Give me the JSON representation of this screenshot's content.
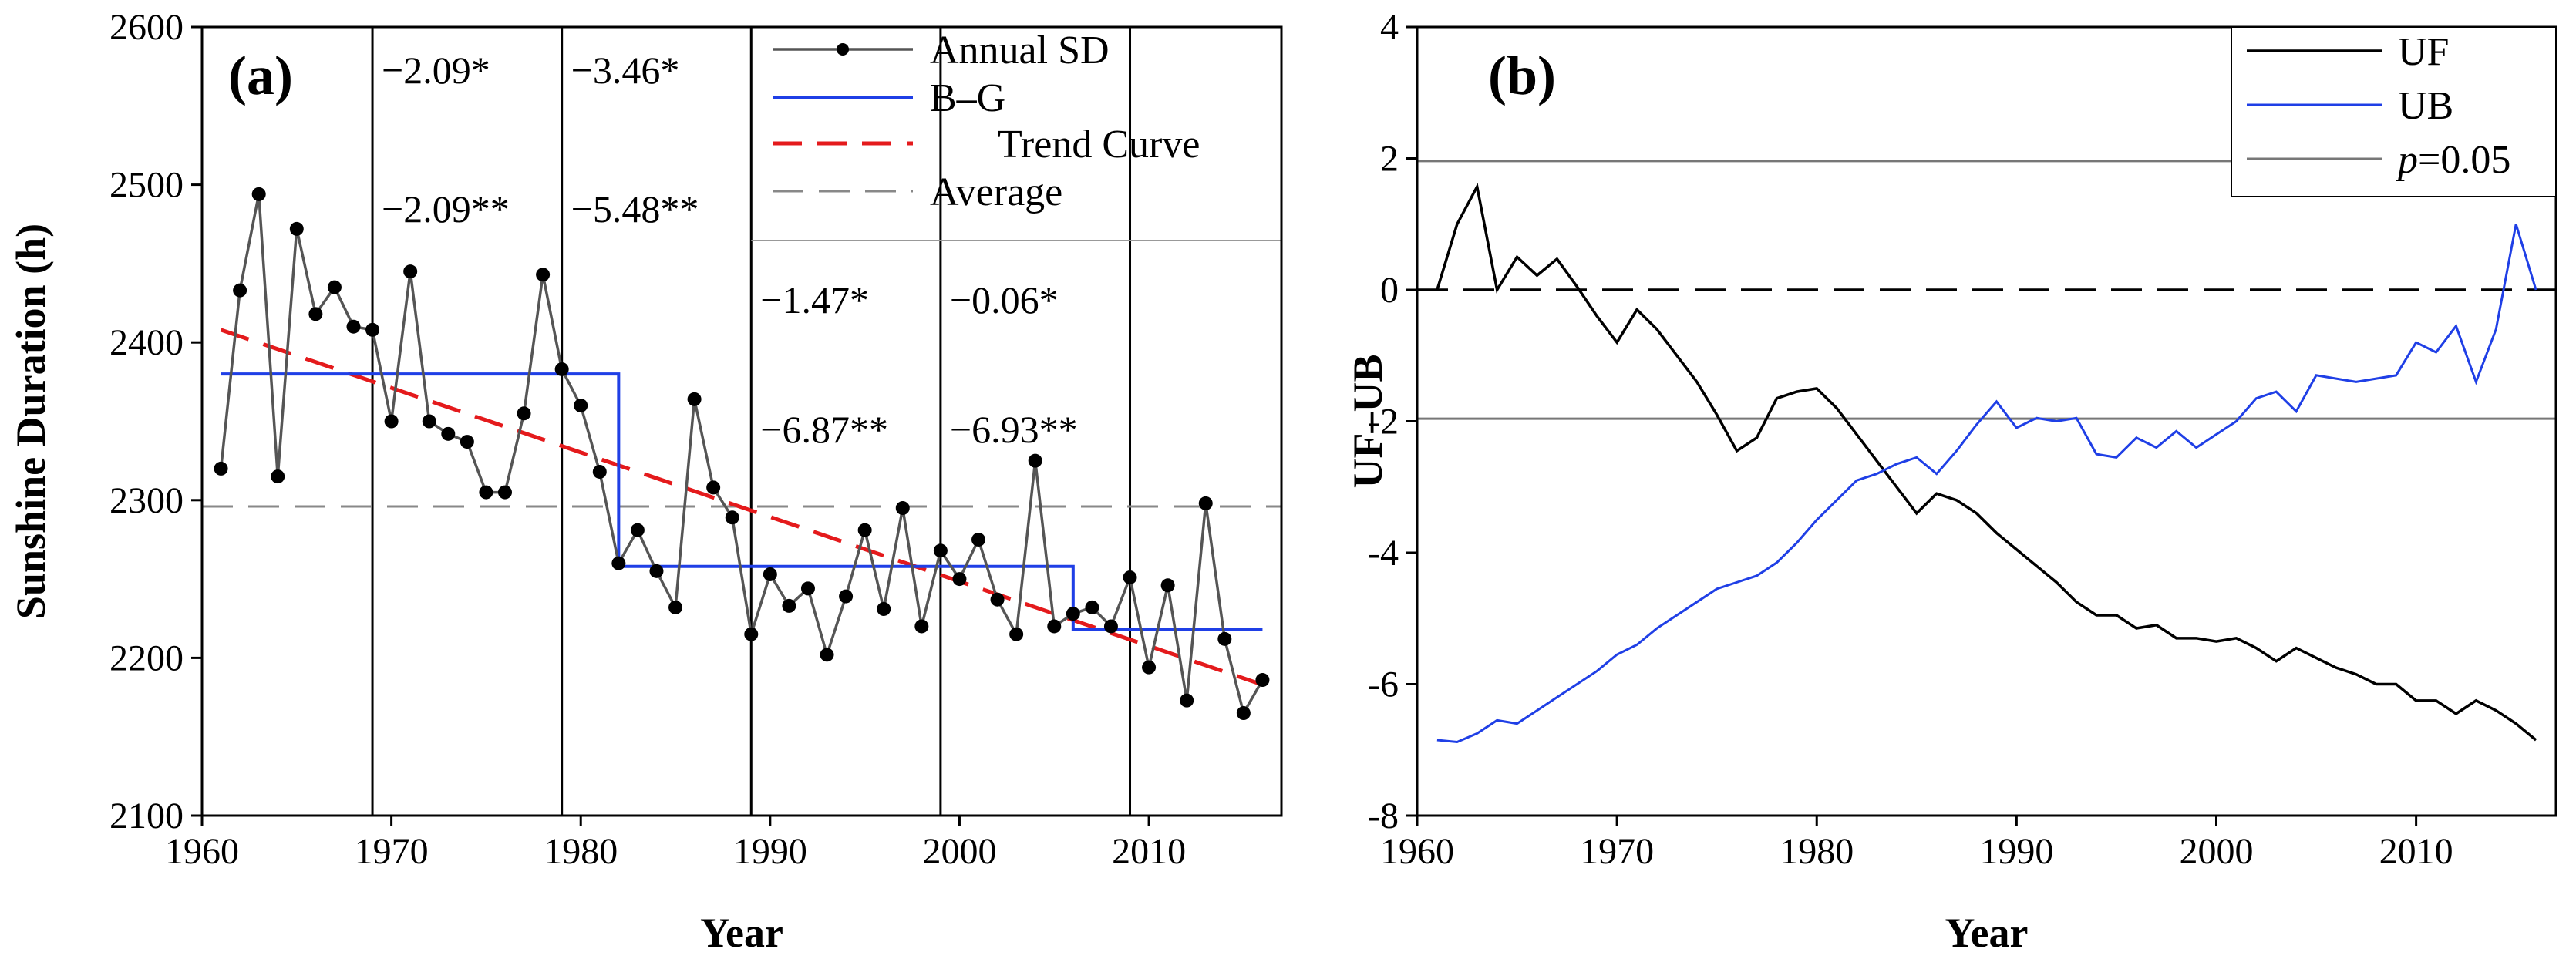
{
  "chart_data": [
    {
      "type": "line",
      "panel_label": "(a)",
      "xlabel": "Year",
      "ylabel": "Sunshine Duration (h)",
      "xlim": [
        1960,
        2017
      ],
      "ylim": [
        2100,
        2600
      ],
      "xticks": [
        1960,
        1970,
        1980,
        1990,
        2000,
        2010
      ],
      "yticks": [
        2100,
        2200,
        2300,
        2400,
        2500,
        2600
      ],
      "legend": [
        "Annual SD",
        "B–G",
        "Trend Curve",
        "Average"
      ],
      "series": [
        {
          "name": "Annual SD",
          "x": [
            1961,
            1962,
            1963,
            1964,
            1965,
            1966,
            1967,
            1968,
            1969,
            1970,
            1971,
            1972,
            1973,
            1974,
            1975,
            1976,
            1977,
            1978,
            1979,
            1980,
            1981,
            1982,
            1983,
            1984,
            1985,
            1986,
            1987,
            1988,
            1989,
            1990,
            1991,
            1992,
            1993,
            1994,
            1995,
            1996,
            1997,
            1998,
            1999,
            2000,
            2001,
            2002,
            2003,
            2004,
            2005,
            2006,
            2007,
            2008,
            2009,
            2010,
            2011,
            2012,
            2013,
            2014,
            2015,
            2016
          ],
          "values": [
            2320,
            2433,
            2494,
            2315,
            2472,
            2418,
            2435,
            2410,
            2408,
            2350,
            2445,
            2350,
            2342,
            2337,
            2305,
            2305,
            2355,
            2443,
            2383,
            2360,
            2318,
            2260,
            2281,
            2255,
            2232,
            2364,
            2308,
            2289,
            2215,
            2253,
            2233,
            2244,
            2202,
            2239,
            2281,
            2231,
            2295,
            2220,
            2268,
            2250,
            2275,
            2237,
            2215,
            2325,
            2220,
            2228,
            2232,
            2220,
            2251,
            2194,
            2246,
            2173,
            2298,
            2212,
            2165,
            2186
          ]
        },
        {
          "name": "B–G",
          "segments": [
            {
              "x": [
                1961,
                1982
              ],
              "value": 2380
            },
            {
              "x": [
                1982,
                2006
              ],
              "value": 2258
            },
            {
              "x": [
                2006,
                2016
              ],
              "value": 2218
            }
          ]
        },
        {
          "name": "Trend Curve",
          "x": [
            1961,
            2016
          ],
          "values": [
            2408,
            2183
          ]
        },
        {
          "name": "Average",
          "value": 2296
        }
      ],
      "change_points": [
        1969,
        1979,
        1989,
        1999,
        2009
      ],
      "annotations": [
        {
          "row": 1,
          "text": "−2.09*"
        },
        {
          "row": 2,
          "text": "−2.09**"
        },
        {
          "row": 1,
          "text": "−3.46*"
        },
        {
          "row": 2,
          "text": "−5.48**"
        },
        {
          "row": 1,
          "text": "−1.47*"
        },
        {
          "row": 2,
          "text": "−6.87**"
        },
        {
          "row": 1,
          "text": "−0.06*"
        },
        {
          "row": 2,
          "text": "−6.93**"
        }
      ]
    },
    {
      "type": "line",
      "panel_label": "(b)",
      "xlabel": "Year",
      "ylabel": "UF–UB",
      "xlim": [
        1960,
        2017
      ],
      "ylim": [
        -8,
        4
      ],
      "xticks": [
        1960,
        1970,
        1980,
        1990,
        2000,
        2010
      ],
      "yticks": [
        -8,
        -6,
        -4,
        -2,
        0,
        2,
        4
      ],
      "legend": [
        "UF",
        "UB"
      ],
      "legend_p_label": "p",
      "legend_p_value": "=0.05",
      "significance_levels": [
        1.96,
        -1.96
      ],
      "zero_line": 0,
      "series": [
        {
          "name": "UF",
          "x": [
            1961,
            1962,
            1963,
            1964,
            1965,
            1966,
            1967,
            1968,
            1969,
            1970,
            1971,
            1972,
            1973,
            1974,
            1975,
            1976,
            1977,
            1978,
            1979,
            1980,
            1981,
            1982,
            1983,
            1984,
            1985,
            1986,
            1987,
            1988,
            1989,
            1990,
            1991,
            1992,
            1993,
            1994,
            1995,
            1996,
            1997,
            1998,
            1999,
            2000,
            2001,
            2002,
            2003,
            2004,
            2005,
            2006,
            2007,
            2008,
            2009,
            2010,
            2011,
            2012,
            2013,
            2014,
            2015,
            2016
          ],
          "values": [
            0,
            1.0,
            1.57,
            0,
            0.5,
            0.22,
            0.47,
            0.05,
            -0.4,
            -0.8,
            -0.3,
            -0.6,
            -1.0,
            -1.4,
            -1.9,
            -2.45,
            -2.25,
            -1.65,
            -1.55,
            -1.5,
            -1.8,
            -2.2,
            -2.6,
            -3.0,
            -3.4,
            -3.1,
            -3.2,
            -3.4,
            -3.7,
            -3.95,
            -4.2,
            -4.45,
            -4.75,
            -4.95,
            -4.95,
            -5.15,
            -5.1,
            -5.3,
            -5.3,
            -5.35,
            -5.3,
            -5.45,
            -5.65,
            -5.45,
            -5.6,
            -5.75,
            -5.85,
            -6.0,
            -6.0,
            -6.25,
            -6.25,
            -6.45,
            -6.25,
            -6.4,
            -6.6,
            -6.85
          ]
        },
        {
          "name": "UB",
          "x": [
            1961,
            1962,
            1963,
            1964,
            1965,
            1966,
            1967,
            1968,
            1969,
            1970,
            1971,
            1972,
            1973,
            1974,
            1975,
            1976,
            1977,
            1978,
            1979,
            1980,
            1981,
            1982,
            1983,
            1984,
            1985,
            1986,
            1987,
            1988,
            1989,
            1990,
            1991,
            1992,
            1993,
            1994,
            1995,
            1996,
            1997,
            1998,
            1999,
            2000,
            2001,
            2002,
            2003,
            2004,
            2005,
            2006,
            2007,
            2008,
            2009,
            2010,
            2011,
            2012,
            2013,
            2014,
            2015,
            2016
          ],
          "values": [
            -6.85,
            -6.88,
            -6.75,
            -6.55,
            -6.6,
            -6.4,
            -6.2,
            -6.0,
            -5.8,
            -5.55,
            -5.4,
            -5.15,
            -4.95,
            -4.75,
            -4.55,
            -4.45,
            -4.35,
            -4.15,
            -3.85,
            -3.5,
            -3.2,
            -2.9,
            -2.8,
            -2.65,
            -2.55,
            -2.8,
            -2.45,
            -2.05,
            -1.7,
            -2.1,
            -1.95,
            -2.0,
            -1.95,
            -2.5,
            -2.55,
            -2.25,
            -2.4,
            -2.15,
            -2.4,
            -2.2,
            -2.0,
            -1.65,
            -1.55,
            -1.85,
            -1.3,
            -1.35,
            -1.4,
            -1.35,
            -1.3,
            -0.8,
            -0.95,
            -0.55,
            -1.4,
            -0.6,
            1.0,
            0
          ]
        }
      ]
    }
  ]
}
